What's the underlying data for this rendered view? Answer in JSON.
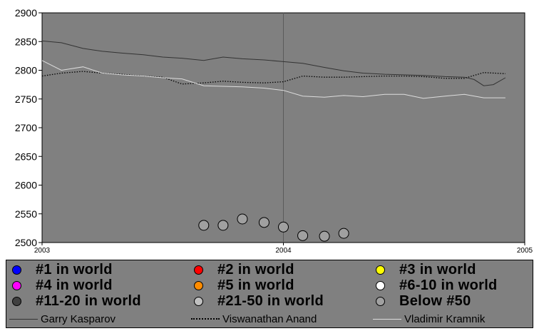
{
  "chart_data": {
    "type": "line",
    "xlim": [
      2003,
      2005
    ],
    "ylim": [
      2500,
      2900
    ],
    "x_ticks": [
      "2003",
      "2004",
      "2005"
    ],
    "y_ticks": [
      "2900",
      "2850",
      "2800",
      "2750",
      "2700",
      "2650",
      "2600",
      "2550",
      "2500"
    ],
    "background": "#808080",
    "grid": "vertical at 2004",
    "series": [
      {
        "name": "Garry Kasparov",
        "style": "solid",
        "color": "#333333",
        "points": [
          [
            2003.0,
            2851
          ],
          [
            2003.08,
            2848
          ],
          [
            2003.17,
            2838
          ],
          [
            2003.25,
            2833
          ],
          [
            2003.33,
            2830
          ],
          [
            2003.42,
            2827
          ],
          [
            2003.5,
            2823
          ],
          [
            2003.58,
            2821
          ],
          [
            2003.67,
            2817
          ],
          [
            2003.75,
            2823
          ],
          [
            2003.83,
            2820
          ],
          [
            2003.92,
            2818
          ],
          [
            2004.0,
            2815
          ],
          [
            2004.08,
            2812
          ],
          [
            2004.17,
            2805
          ],
          [
            2004.25,
            2799
          ],
          [
            2004.33,
            2795
          ],
          [
            2004.42,
            2793
          ],
          [
            2004.5,
            2792
          ],
          [
            2004.58,
            2791
          ],
          [
            2004.67,
            2789
          ],
          [
            2004.75,
            2788
          ],
          [
            2004.79,
            2784
          ],
          [
            2004.83,
            2773
          ],
          [
            2004.87,
            2775
          ],
          [
            2004.92,
            2787
          ]
        ]
      },
      {
        "name": "Viswanathan Anand",
        "style": "dotted",
        "color": "#000000",
        "points": [
          [
            2003.0,
            2790
          ],
          [
            2003.08,
            2795
          ],
          [
            2003.17,
            2798
          ],
          [
            2003.25,
            2795
          ],
          [
            2003.33,
            2793
          ],
          [
            2003.42,
            2790
          ],
          [
            2003.5,
            2788
          ],
          [
            2003.58,
            2776
          ],
          [
            2003.67,
            2778
          ],
          [
            2003.75,
            2781
          ],
          [
            2003.83,
            2779
          ],
          [
            2003.92,
            2778
          ],
          [
            2004.0,
            2780
          ],
          [
            2004.08,
            2790
          ],
          [
            2004.17,
            2788
          ],
          [
            2004.25,
            2788
          ],
          [
            2004.33,
            2789
          ],
          [
            2004.42,
            2790
          ],
          [
            2004.5,
            2790
          ],
          [
            2004.58,
            2789
          ],
          [
            2004.67,
            2786
          ],
          [
            2004.75,
            2786
          ],
          [
            2004.83,
            2796
          ],
          [
            2004.92,
            2794
          ]
        ]
      },
      {
        "name": "Vladimir Kramnik",
        "style": "solid",
        "color": "#dddddd",
        "points": [
          [
            2003.0,
            2817
          ],
          [
            2003.08,
            2800
          ],
          [
            2003.17,
            2806
          ],
          [
            2003.25,
            2795
          ],
          [
            2003.33,
            2792
          ],
          [
            2003.42,
            2790
          ],
          [
            2003.5,
            2787
          ],
          [
            2003.58,
            2785
          ],
          [
            2003.67,
            2773
          ],
          [
            2003.75,
            2772
          ],
          [
            2003.83,
            2771
          ],
          [
            2003.92,
            2769
          ],
          [
            2004.0,
            2765
          ],
          [
            2004.08,
            2755
          ],
          [
            2004.17,
            2753
          ],
          [
            2004.25,
            2756
          ],
          [
            2004.33,
            2754
          ],
          [
            2004.42,
            2758
          ],
          [
            2004.5,
            2758
          ],
          [
            2004.58,
            2751
          ],
          [
            2004.67,
            2755
          ],
          [
            2004.75,
            2758
          ],
          [
            2004.83,
            2752
          ],
          [
            2004.92,
            2752
          ]
        ]
      }
    ],
    "markers": [
      {
        "x": 2003.67,
        "y": 2530,
        "class": "Below #50"
      },
      {
        "x": 2003.75,
        "y": 2530,
        "class": "Below #50"
      },
      {
        "x": 2003.83,
        "y": 2541,
        "class": "Below #50"
      },
      {
        "x": 2003.92,
        "y": 2535,
        "class": "Below #50"
      },
      {
        "x": 2004.0,
        "y": 2527,
        "class": "Below #50"
      },
      {
        "x": 2004.08,
        "y": 2512,
        "class": "Below #50"
      },
      {
        "x": 2004.17,
        "y": 2511,
        "class": "Below #50"
      },
      {
        "x": 2004.25,
        "y": 2516,
        "class": "Below #50"
      }
    ]
  },
  "legend": {
    "rank_items": [
      {
        "label": "#1 in world",
        "color": "#0000ff"
      },
      {
        "label": "#2 in world",
        "color": "#ff0000"
      },
      {
        "label": "#3 in world",
        "color": "#ffff00"
      },
      {
        "label": "#4 in world",
        "color": "#ff00ff"
      },
      {
        "label": "#5 in world",
        "color": "#ff8c00"
      },
      {
        "label": "#6-10 in world",
        "color": "#ffffff"
      },
      {
        "label": "#11-20 in world",
        "color": "#404040"
      },
      {
        "label": "#21-50 in world",
        "color": "#c0c0c0"
      },
      {
        "label": "Below #50",
        "color": "#a0a0a0"
      }
    ],
    "line_items": [
      {
        "label": "Garry Kasparov",
        "style": "solid",
        "color": "#333333"
      },
      {
        "label": "Viswanathan Anand",
        "style": "dotted",
        "color": "#000000"
      },
      {
        "label": "Vladimir Kramnik",
        "style": "solid",
        "color": "#dddddd"
      }
    ]
  }
}
